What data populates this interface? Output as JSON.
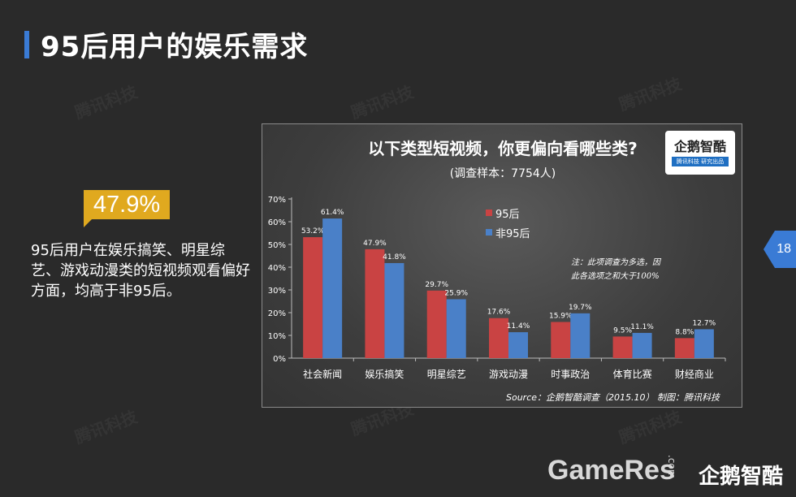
{
  "page": {
    "title": "95后用户的娱乐需求",
    "highlight_value": "47.9%",
    "summary": "95后用户在娱乐搞笑、明星综艺、游戏动漫类的短视频观看偏好方面，均高于非95后。",
    "page_number": "18",
    "watermark": "腾讯科技",
    "site_mark": "GameRes",
    "site_mark_sub": ".com",
    "corner_logo": "企鹅智酷"
  },
  "colors": {
    "background": "#2a2a2a",
    "accent_blue": "#3a7bd5",
    "highlight": "#e0a91f",
    "series_95": "#c94343",
    "series_non95": "#4a80c8"
  },
  "chart_logo": {
    "title": "企鹅智酷",
    "subtitle": "腾讯科技 研究出品"
  },
  "chart_data": {
    "type": "bar",
    "title": "以下类型短视频，你更偏向看哪些类?",
    "subtitle": "(调查样本：7754人)",
    "categories": [
      "社会新闻",
      "娱乐搞笑",
      "明星综艺",
      "游戏动漫",
      "时事政治",
      "体育比赛",
      "财经商业"
    ],
    "series": [
      {
        "name": "95后",
        "values": [
          53.2,
          47.9,
          29.7,
          17.6,
          15.9,
          9.5,
          8.8
        ],
        "labels": [
          "53.2%",
          "47.9%",
          "29.7%",
          "17.6%",
          "15.9%",
          "9.5%",
          "8.8%"
        ]
      },
      {
        "name": "非95后",
        "values": [
          61.4,
          41.8,
          25.9,
          11.4,
          19.7,
          11.1,
          12.7
        ],
        "labels": [
          "61.4%",
          "41.8%",
          "25.9%",
          "11.4%",
          "19.7%",
          "11.1%",
          "12.7%"
        ]
      }
    ],
    "y_ticks": [
      "0%",
      "10%",
      "20%",
      "30%",
      "40%",
      "50%",
      "60%",
      "70%"
    ],
    "ylim": [
      0,
      70
    ],
    "unit": "%",
    "grid": false,
    "legend_position": "top-center",
    "note_line1": "注：此项调查为多选，因",
    "note_line2": "此各选项之和大于100%",
    "source": "Source：企鹅智酷调查（2015.10）   制图：腾讯科技"
  }
}
